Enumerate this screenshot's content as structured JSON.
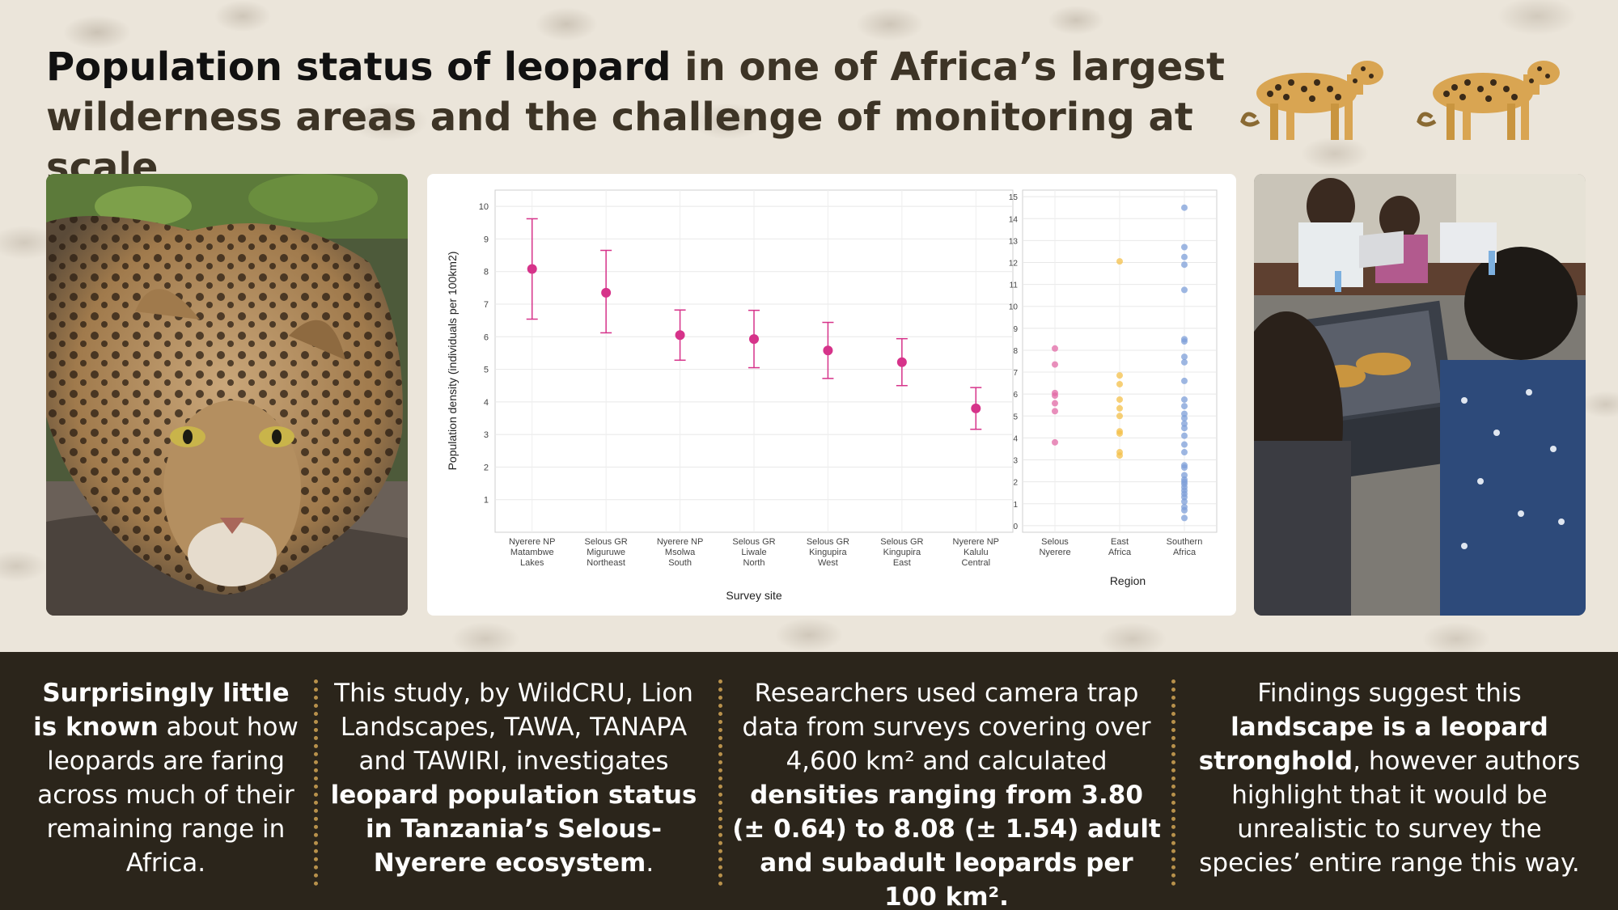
{
  "title": {
    "bold": "Population status of leopard",
    "rest_line1": " in one of Africa’s largest",
    "line2": "wilderness areas and the challenge of monitoring at scale"
  },
  "images": {
    "left_photo": "leopard-portrait-photo",
    "right_photo": "researchers-with-laptops-photo",
    "header_art": "walking-leopards-illustration"
  },
  "colors": {
    "background_light": "#ebe5da",
    "background_dark": "#2b251b",
    "divider": "#b8914b",
    "site_points": "#d6338a",
    "selous_nyerere": "#e16aa6",
    "east_africa": "#f4c04a",
    "southern_africa": "#7e9fd8"
  },
  "chart_data": [
    {
      "type": "scatter",
      "subtype": "point-with-error-bars",
      "xlabel": "Survey site",
      "ylabel": "Population density (individuals per 100km2)",
      "ylim": [
        0,
        10.5
      ],
      "yticks": [
        1,
        2,
        3,
        4,
        5,
        6,
        7,
        8,
        9,
        10
      ],
      "grid": true,
      "categories": [
        [
          "Nyerere NP",
          "Matambwe",
          "Lakes"
        ],
        [
          "Selous GR",
          "Miguruwe",
          "Northeast"
        ],
        [
          "Nyerere NP",
          "Msolwa",
          "South"
        ],
        [
          "Selous GR",
          "Liwale",
          "North"
        ],
        [
          "Selous GR",
          "Kingupira",
          "West"
        ],
        [
          "Selous GR",
          "Kingupira",
          "East"
        ],
        [
          "Nyerere NP",
          "Kalulu",
          "Central"
        ]
      ],
      "values": [
        8.08,
        7.35,
        6.05,
        5.93,
        5.58,
        5.22,
        3.8
      ],
      "lower": [
        6.54,
        6.12,
        5.28,
        5.05,
        4.72,
        4.5,
        3.16
      ],
      "upper": [
        9.62,
        8.65,
        6.82,
        6.81,
        6.44,
        5.94,
        4.44
      ]
    },
    {
      "type": "scatter",
      "subtype": "strip",
      "xlabel": "Region",
      "ylabel": "",
      "ylim": [
        -0.3,
        15.3
      ],
      "yticks": [
        0,
        1,
        2,
        3,
        4,
        5,
        6,
        7,
        8,
        9,
        10,
        11,
        12,
        13,
        14,
        15
      ],
      "grid": true,
      "categories": [
        [
          "Selous",
          "Nyerere"
        ],
        [
          "East",
          "Africa"
        ],
        [
          "Southern",
          "Africa"
        ]
      ],
      "series": [
        {
          "name": "Selous Nyerere",
          "values": [
            8.08,
            7.35,
            6.05,
            5.93,
            5.58,
            5.22,
            3.8
          ]
        },
        {
          "name": "East Africa",
          "values": [
            12.05,
            6.85,
            6.45,
            5.75,
            5.35,
            5.0,
            4.3,
            4.2,
            3.35,
            3.2
          ]
        },
        {
          "name": "Southern Africa",
          "values": [
            14.5,
            12.7,
            12.25,
            11.9,
            10.75,
            8.5,
            8.4,
            7.7,
            7.45,
            6.6,
            5.75,
            5.45,
            5.1,
            4.9,
            4.65,
            4.45,
            4.1,
            3.7,
            3.35,
            2.75,
            2.65,
            2.3,
            2.1,
            2.0,
            1.9,
            1.75,
            1.6,
            1.45,
            1.3,
            1.1,
            0.85,
            0.7,
            0.35
          ]
        }
      ]
    }
  ],
  "columns": [
    {
      "segments": [
        {
          "b": true,
          "t": "Surprisingly little is known"
        },
        {
          "b": false,
          "t": " about how leopards are faring across much of their remaining range in Africa."
        }
      ]
    },
    {
      "segments": [
        {
          "b": false,
          "t": "This study, by WildCRU, Lion Landscapes, TAWA, TANAPA and TAWIRI, investigates "
        },
        {
          "b": true,
          "t": "leopard population status in Tanzania’s Selous-Nyerere ecosystem"
        },
        {
          "b": false,
          "t": "."
        }
      ]
    },
    {
      "segments": [
        {
          "b": false,
          "t": "Researchers used camera trap data from surveys covering over 4,600 km² and calculated "
        },
        {
          "b": true,
          "t": "densities ranging from 3.80 (± 0.64) to 8.08 (± 1.54) adult and subadult leopards per 100 km²."
        }
      ]
    },
    {
      "segments": [
        {
          "b": false,
          "t": "Findings suggest this "
        },
        {
          "b": true,
          "t": "landscape is a leopard stronghold"
        },
        {
          "b": false,
          "t": ", however authors highlight that it would be unrealistic to survey the species’ entire range this way."
        }
      ]
    }
  ]
}
